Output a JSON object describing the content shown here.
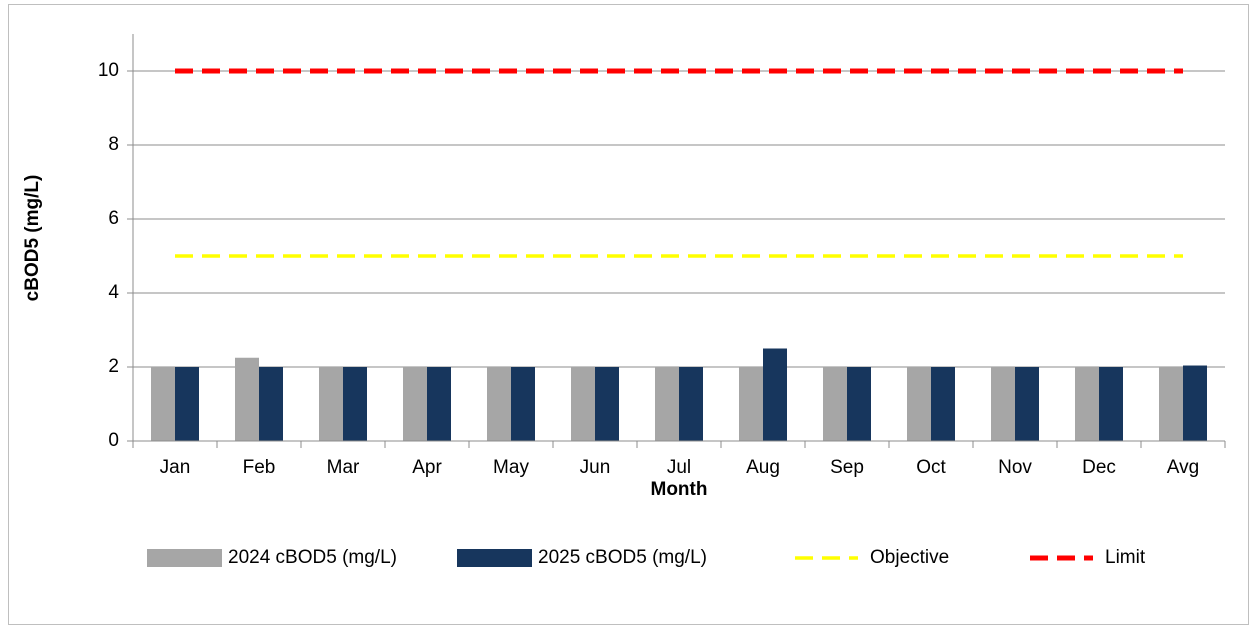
{
  "chart_data": {
    "type": "bar",
    "x_label": "Month",
    "y_label": "cBOD5 (mg/L)",
    "categories": [
      "Jan",
      "Feb",
      "Mar",
      "Apr",
      "May",
      "Jun",
      "Jul",
      "Aug",
      "Sep",
      "Oct",
      "Nov",
      "Dec",
      "Avg"
    ],
    "series": [
      {
        "name": "2024 cBOD5 (mg/L)",
        "type": "bar",
        "color": "#a6a6a6",
        "values": [
          2,
          2.25,
          2,
          2,
          2,
          2,
          2,
          2,
          2,
          2,
          2,
          2,
          2
        ]
      },
      {
        "name": "2025 cBOD5 (mg/L)",
        "type": "bar",
        "color": "#17365d",
        "values": [
          2,
          2,
          2,
          2,
          2,
          2,
          2,
          2.5,
          2,
          2,
          2,
          2,
          2.04
        ]
      },
      {
        "name": "Objective",
        "type": "line",
        "dashed": true,
        "color": "#ffff00",
        "values": [
          5,
          5,
          5,
          5,
          5,
          5,
          5,
          5,
          5,
          5,
          5,
          5,
          5
        ]
      },
      {
        "name": "Limit",
        "type": "line",
        "dashed": true,
        "color": "#ff0000",
        "values": [
          10,
          10,
          10,
          10,
          10,
          10,
          10,
          10,
          10,
          10,
          10,
          10,
          10
        ]
      }
    ],
    "ylim": [
      0,
      11
    ],
    "yticks": [
      0,
      2,
      4,
      6,
      8,
      10
    ],
    "grid": true,
    "legend": "bottom"
  }
}
